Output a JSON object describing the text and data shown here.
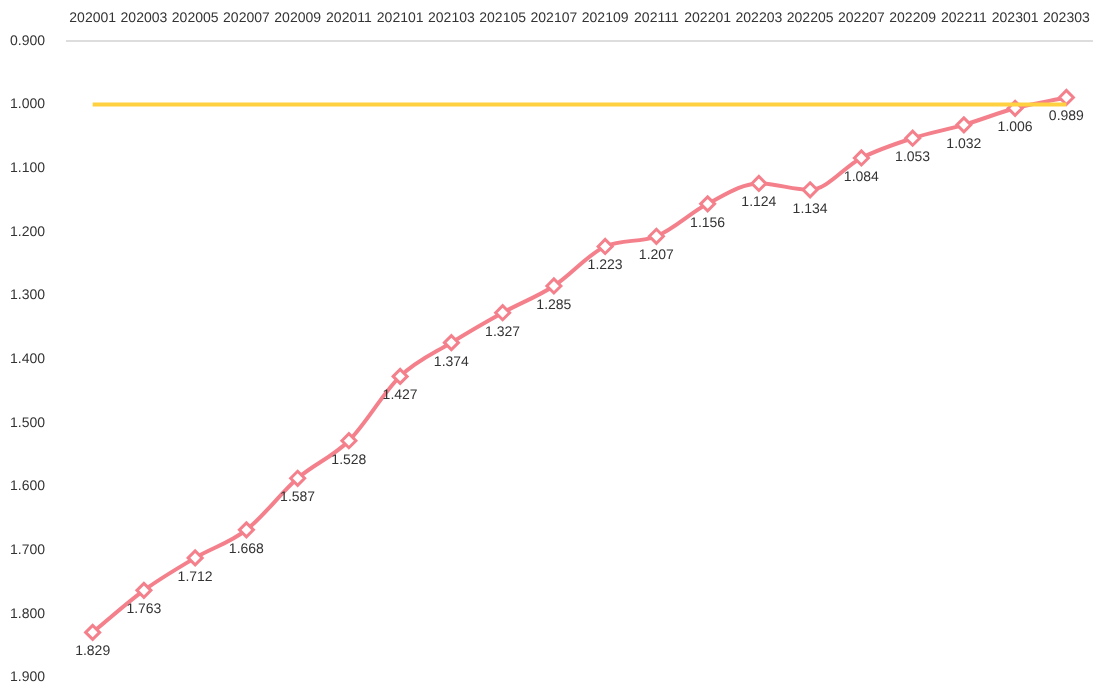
{
  "chart_data": {
    "type": "line",
    "categories": [
      "202001",
      "202003",
      "202005",
      "202007",
      "202009",
      "202011",
      "202101",
      "202103",
      "202105",
      "202107",
      "202109",
      "202111",
      "202201",
      "202203",
      "202205",
      "202207",
      "202209",
      "202211",
      "202301",
      "202303"
    ],
    "series": [
      {
        "color": "#f4808c",
        "values": [
          1.829,
          1.763,
          1.712,
          1.668,
          1.587,
          1.528,
          1.427,
          1.374,
          1.327,
          1.285,
          1.223,
          1.207,
          1.156,
          1.124,
          1.134,
          1.084,
          1.053,
          1.032,
          1.006,
          0.989
        ]
      }
    ],
    "ylim": [
      1.9,
      0.9
    ],
    "yticks": [
      {
        "value": 0.9,
        "label": "0.900"
      },
      {
        "value": 1.0,
        "label": "1.000"
      },
      {
        "value": 1.1,
        "label": "1.100"
      },
      {
        "value": 1.2,
        "label": "1.200"
      },
      {
        "value": 1.3,
        "label": "1.300"
      },
      {
        "value": 1.4,
        "label": "1.400"
      },
      {
        "value": 1.5,
        "label": "1.500"
      },
      {
        "value": 1.6,
        "label": "1.600"
      },
      {
        "value": 1.7,
        "label": "1.700"
      },
      {
        "value": 1.8,
        "label": "1.800"
      },
      {
        "value": 1.9,
        "label": "1.900"
      }
    ],
    "ref_lines": [
      {
        "axis": "y",
        "value": 1.0,
        "color": "#ffd040"
      }
    ],
    "marker": "diamond",
    "line_style": "solid",
    "grid": false,
    "legend": false,
    "data_labels": true
  }
}
